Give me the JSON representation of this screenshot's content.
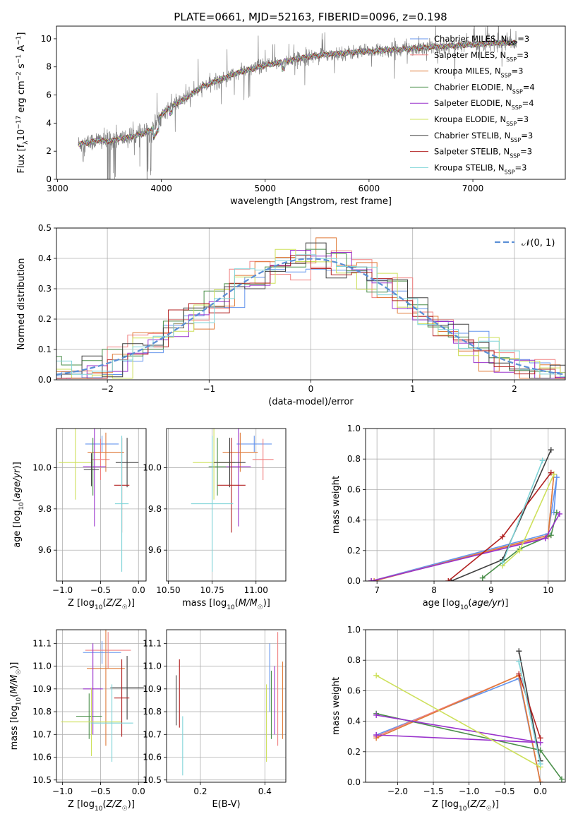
{
  "figure": {
    "title": "PLATE=0661, MJD=52163, FIBERID=0096, z=0.198"
  },
  "colors": {
    "models": [
      "#6495ED",
      "#F08080",
      "#E07B39",
      "#4a8f4a",
      "#9932CC",
      "#CDE05A",
      "#404040",
      "#B22222",
      "#7FD4D8"
    ],
    "data_spectrum": "#808080",
    "normal_curve": "#5B8FD6"
  },
  "chart_data": [
    {
      "id": "spectrum",
      "type": "line",
      "title": "PLATE=0661, MJD=52163, FIBERID=0096, z=0.198",
      "xlabel": "wavelength [Angstrom, rest frame]",
      "ylabel": "Flux [f_λ 10^-17 erg cm^-2 s^-1 A^-1]",
      "xlim": [
        2990,
        7890
      ],
      "ylim": [
        0,
        10.9
      ],
      "xticks": [
        3000,
        4000,
        5000,
        6000,
        7000
      ],
      "yticks": [
        0,
        2,
        4,
        6,
        8,
        10
      ],
      "legend_position": "right",
      "series": [
        {
          "name": "Chabrier MILES, N_SSP=3",
          "color_index": 0
        },
        {
          "name": "Salpeter MILES, N_SSP=3",
          "color_index": 1
        },
        {
          "name": "Kroupa MILES, N_SSP=3",
          "color_index": 2
        },
        {
          "name": "Chabrier ELODIE, N_SSP=4",
          "color_index": 3
        },
        {
          "name": "Salpeter ELODIE, N_SSP=4",
          "color_index": 4
        },
        {
          "name": "Kroupa ELODIE, N_SSP=3",
          "color_index": 5
        },
        {
          "name": "Chabrier STELIB, N_SSP=3",
          "color_index": 6
        },
        {
          "name": "Salpeter STELIB, N_SSP=3",
          "color_index": 7
        },
        {
          "name": "Kroupa STELIB, N_SSP=3",
          "color_index": 8
        }
      ],
      "continuum": {
        "x": [
          3200,
          3300,
          3400,
          3500,
          3600,
          3700,
          3800,
          3900,
          4000,
          4100,
          4200,
          4300,
          4400,
          4500,
          4600,
          4700,
          4800,
          4900,
          5000,
          5200,
          5400,
          5600,
          5800,
          6000,
          6200,
          6400,
          6600,
          6800,
          7000,
          7200,
          7400
        ],
        "y": [
          2.5,
          2.6,
          2.8,
          2.7,
          2.9,
          3.0,
          3.2,
          3.5,
          4.6,
          5.2,
          5.6,
          6.1,
          6.6,
          6.9,
          7.2,
          7.5,
          7.7,
          7.9,
          8.1,
          8.4,
          8.7,
          8.9,
          9.0,
          9.1,
          9.2,
          9.3,
          9.4,
          9.5,
          9.6,
          9.7,
          9.7
        ]
      }
    },
    {
      "id": "residuals",
      "type": "histogram",
      "xlabel": "(data-model)/error",
      "ylabel": "Normed distribution",
      "xlim": [
        -2.5,
        2.5
      ],
      "ylim": [
        0,
        0.5
      ],
      "xticks": [
        -2,
        -1,
        0,
        1,
        2
      ],
      "yticks": [
        0.0,
        0.1,
        0.2,
        0.3,
        0.4,
        0.5
      ],
      "grid": true,
      "legend": "𝒩(0, 1)",
      "legend_position": "top-right",
      "normal": {
        "mean": 0,
        "sigma": 1
      }
    },
    {
      "id": "age_vs_Z",
      "type": "scatter",
      "xlabel": "Z [log10(Z/Z☉)]",
      "ylabel": "age [log10(age/yr)]",
      "xlim": [
        -1.08,
        0.1
      ],
      "ylim": [
        9.45,
        10.19
      ],
      "xticks": [
        -1.0,
        -0.5,
        0.0
      ],
      "yticks": [
        9.6,
        9.8,
        10.0
      ],
      "grid": true,
      "points": [
        {
          "x": -0.48,
          "xerr": 0.22,
          "y": 10.115,
          "yerr": 0.04,
          "color_index": 0
        },
        {
          "x": -0.5,
          "xerr": 0.12,
          "y": 10.04,
          "yerr": 0.1,
          "color_index": 1
        },
        {
          "x": -0.43,
          "xerr": 0.24,
          "y": 10.075,
          "yerr": 0.095,
          "color_index": 2
        },
        {
          "x": -0.6,
          "xerr": 0.1,
          "y": 10.005,
          "yerr": 0.14,
          "color_index": 3
        },
        {
          "x": -0.58,
          "xerr": 0.15,
          "y": 10.005,
          "yerr": 0.29,
          "color_index": 4
        },
        {
          "x": -0.83,
          "xerr": 0.22,
          "y": 10.025,
          "yerr": 0.18,
          "color_index": 5
        },
        {
          "x": -0.15,
          "xerr": 0.15,
          "y": 10.025,
          "yerr": 0.12,
          "color_index": 6
        },
        {
          "x": -0.22,
          "xerr": 0.1,
          "y": 9.915,
          "yerr": 0.23,
          "color_index": 7
        },
        {
          "x": -0.22,
          "xerr": 0.09,
          "y": 9.825,
          "yerr": 0.33,
          "color_index": 8
        },
        {
          "x": -0.62,
          "xerr": 0.1,
          "y": 9.99,
          "yerr": 0.08,
          "color_index": 6
        }
      ]
    },
    {
      "id": "age_vs_mass",
      "type": "scatter",
      "xlabel": "mass [log10(M/M☉)]",
      "ylabel": "",
      "xlim": [
        10.49,
        11.17
      ],
      "ylim": [
        9.45,
        10.19
      ],
      "xticks": [
        10.5,
        10.75,
        11.0
      ],
      "yticks": [
        9.6,
        9.8,
        10.0
      ],
      "grid": true,
      "points": [
        {
          "x": 10.99,
          "xerr": 0.1,
          "y": 10.115,
          "yerr": 0.04,
          "color_index": 0
        },
        {
          "x": 11.04,
          "xerr": 0.06,
          "y": 10.04,
          "yerr": 0.1,
          "color_index": 1
        },
        {
          "x": 10.91,
          "xerr": 0.1,
          "y": 10.075,
          "yerr": 0.095,
          "color_index": 2
        },
        {
          "x": 10.78,
          "xerr": 0.05,
          "y": 10.005,
          "yerr": 0.14,
          "color_index": 3
        },
        {
          "x": 10.9,
          "xerr": 0.07,
          "y": 10.005,
          "yerr": 0.29,
          "color_index": 4
        },
        {
          "x": 10.76,
          "xerr": 0.12,
          "y": 10.025,
          "yerr": 0.18,
          "color_index": 5
        },
        {
          "x": 10.85,
          "xerr": 0.09,
          "y": 10.025,
          "yerr": 0.12,
          "color_index": 6
        },
        {
          "x": 10.86,
          "xerr": 0.08,
          "y": 9.915,
          "yerr": 0.23,
          "color_index": 7
        },
        {
          "x": 10.75,
          "xerr": 0.12,
          "y": 9.825,
          "yerr": 0.33,
          "color_index": 8
        }
      ]
    },
    {
      "id": "mass_weight_vs_age",
      "type": "line",
      "xlabel": "age [log10(age/yr)]",
      "ylabel": "mass weight",
      "xlim": [
        6.8,
        10.3
      ],
      "ylim": [
        0,
        1.0
      ],
      "xticks": [
        7,
        8,
        9,
        10
      ],
      "yticks": [
        0.0,
        0.2,
        0.4,
        0.6,
        0.8,
        1.0
      ],
      "grid": true,
      "series": [
        {
          "color_index": 0,
          "x": [
            6.9,
            10.0,
            10.15,
            10.1
          ],
          "y": [
            0.0,
            0.31,
            0.68,
            0.45
          ]
        },
        {
          "color_index": 1,
          "x": [
            6.9,
            10.0,
            10.1
          ],
          "y": [
            0.0,
            0.29,
            0.7
          ]
        },
        {
          "color_index": 2,
          "x": [
            6.95,
            10.0,
            10.1
          ],
          "y": [
            0.0,
            0.3,
            0.7
          ]
        },
        {
          "color_index": 3,
          "x": [
            8.85,
            9.5,
            10.05,
            10.15
          ],
          "y": [
            0.02,
            0.21,
            0.3,
            0.45
          ]
        },
        {
          "color_index": 4,
          "x": [
            6.9,
            9.95,
            10.2
          ],
          "y": [
            0.0,
            0.28,
            0.44
          ]
        },
        {
          "color_index": 5,
          "x": [
            9.2,
            9.5,
            10.1
          ],
          "y": [
            0.1,
            0.2,
            0.7
          ]
        },
        {
          "color_index": 6,
          "x": [
            8.3,
            9.2,
            10.05
          ],
          "y": [
            0.0,
            0.14,
            0.86
          ]
        },
        {
          "color_index": 7,
          "x": [
            8.25,
            9.2,
            10.05
          ],
          "y": [
            0.0,
            0.29,
            0.71
          ]
        },
        {
          "color_index": 8,
          "x": [
            9.2,
            9.9
          ],
          "y": [
            0.12,
            0.79
          ]
        }
      ]
    },
    {
      "id": "mass_vs_Z",
      "type": "scatter",
      "xlabel": "Z [log10(Z/Z☉)]",
      "ylabel": "mass [log10(M/M☉)]",
      "xlim": [
        -1.08,
        0.1
      ],
      "ylim": [
        10.49,
        11.16
      ],
      "xticks": [
        -1.0,
        -0.5,
        0.0
      ],
      "yticks": [
        10.5,
        10.6,
        10.7,
        10.8,
        10.9,
        11.0,
        11.1
      ],
      "grid": true,
      "points": [
        {
          "x": -0.48,
          "xerr": 0.25,
          "y": 11.06,
          "yerr": 0.05,
          "color_index": 0
        },
        {
          "x": -0.4,
          "xerr": 0.3,
          "y": 11.07,
          "yerr": 0.08,
          "color_index": 1
        },
        {
          "x": -0.43,
          "xerr": 0.25,
          "y": 10.99,
          "yerr": 0.34,
          "color_index": 2
        },
        {
          "x": -0.65,
          "xerr": 0.17,
          "y": 10.78,
          "yerr": 0.1,
          "color_index": 3
        },
        {
          "x": -0.6,
          "xerr": 0.13,
          "y": 10.9,
          "yerr": 0.2,
          "color_index": 4
        },
        {
          "x": -0.62,
          "xerr": 0.4,
          "y": 10.755,
          "yerr": 0.15,
          "color_index": 5
        },
        {
          "x": -0.15,
          "xerr": 0.22,
          "y": 10.905,
          "yerr": 0.14,
          "color_index": 6
        },
        {
          "x": -0.22,
          "xerr": 0.1,
          "y": 10.86,
          "yerr": 0.17,
          "color_index": 7
        },
        {
          "x": -0.35,
          "xerr": 0.28,
          "y": 10.75,
          "yerr": 0.17,
          "color_index": 8
        }
      ]
    },
    {
      "id": "mass_vs_EBV",
      "type": "scatter",
      "xlabel": "E(B-V)",
      "ylabel": "",
      "xlim": [
        0.095,
        0.465
      ],
      "ylim": [
        10.49,
        11.16
      ],
      "xticks": [
        0.2,
        0.4
      ],
      "yticks": [
        10.5,
        10.6,
        10.7,
        10.8,
        10.9,
        11.0,
        11.1
      ],
      "grid": true,
      "points": [
        {
          "x": 0.415,
          "xerr": 0,
          "y": 10.95,
          "yerr": 0.15,
          "color_index": 0
        },
        {
          "x": 0.44,
          "xerr": 0,
          "y": 10.9,
          "yerr": 0.25,
          "color_index": 1
        },
        {
          "x": 0.455,
          "xerr": 0,
          "y": 10.85,
          "yerr": 0.17,
          "color_index": 2
        },
        {
          "x": 0.42,
          "xerr": 0,
          "y": 10.83,
          "yerr": 0.15,
          "color_index": 3
        },
        {
          "x": 0.43,
          "xerr": 0,
          "y": 10.85,
          "yerr": 0.15,
          "color_index": 4
        },
        {
          "x": 0.405,
          "xerr": 0,
          "y": 10.75,
          "yerr": 0.17,
          "color_index": 5
        },
        {
          "x": 0.125,
          "xerr": 0,
          "y": 10.85,
          "yerr": 0.11,
          "color_index": 6
        },
        {
          "x": 0.135,
          "xerr": 0,
          "y": 10.88,
          "yerr": 0.15,
          "color_index": 7
        },
        {
          "x": 0.145,
          "xerr": 0,
          "y": 10.65,
          "yerr": 0.13,
          "color_index": 8
        }
      ]
    },
    {
      "id": "mass_weight_vs_Z",
      "type": "line",
      "xlabel": "Z [log10(Z/Z☉)]",
      "ylabel": "mass weight",
      "xlim": [
        -2.45,
        0.35
      ],
      "ylim": [
        0,
        1.0
      ],
      "xticks": [
        -2.0,
        -1.5,
        -1.0,
        -0.5,
        0.0
      ],
      "yticks": [
        0.0,
        0.2,
        0.4,
        0.6,
        0.8,
        1.0
      ],
      "grid": true,
      "series": [
        {
          "color_index": 0,
          "x": [
            -2.3,
            -0.3,
            0.0
          ],
          "y": [
            0.31,
            0.68,
            0.0
          ]
        },
        {
          "color_index": 1,
          "x": [
            -2.3,
            -0.3,
            0.0
          ],
          "y": [
            0.3,
            0.7,
            0.0
          ]
        },
        {
          "color_index": 2,
          "x": [
            -2.3,
            -0.3,
            0.0
          ],
          "y": [
            0.29,
            0.7,
            0.0
          ]
        },
        {
          "color_index": 3,
          "x": [
            -2.3,
            0.0,
            0.3
          ],
          "y": [
            0.45,
            0.21,
            0.02
          ]
        },
        {
          "color_index": 4,
          "x": [
            -2.3,
            0.0,
            -2.3
          ],
          "y": [
            0.44,
            0.26,
            0.31
          ]
        },
        {
          "color_index": 5,
          "x": [
            -2.3,
            0.0
          ],
          "y": [
            0.7,
            0.1
          ]
        },
        {
          "color_index": 6,
          "x": [
            -0.3,
            0.0
          ],
          "y": [
            0.86,
            0.14
          ]
        },
        {
          "color_index": 7,
          "x": [
            -0.3,
            0.0
          ],
          "y": [
            0.71,
            0.29
          ]
        },
        {
          "color_index": 8,
          "x": [
            -0.3,
            0.0
          ],
          "y": [
            0.79,
            0.12
          ]
        }
      ]
    }
  ]
}
